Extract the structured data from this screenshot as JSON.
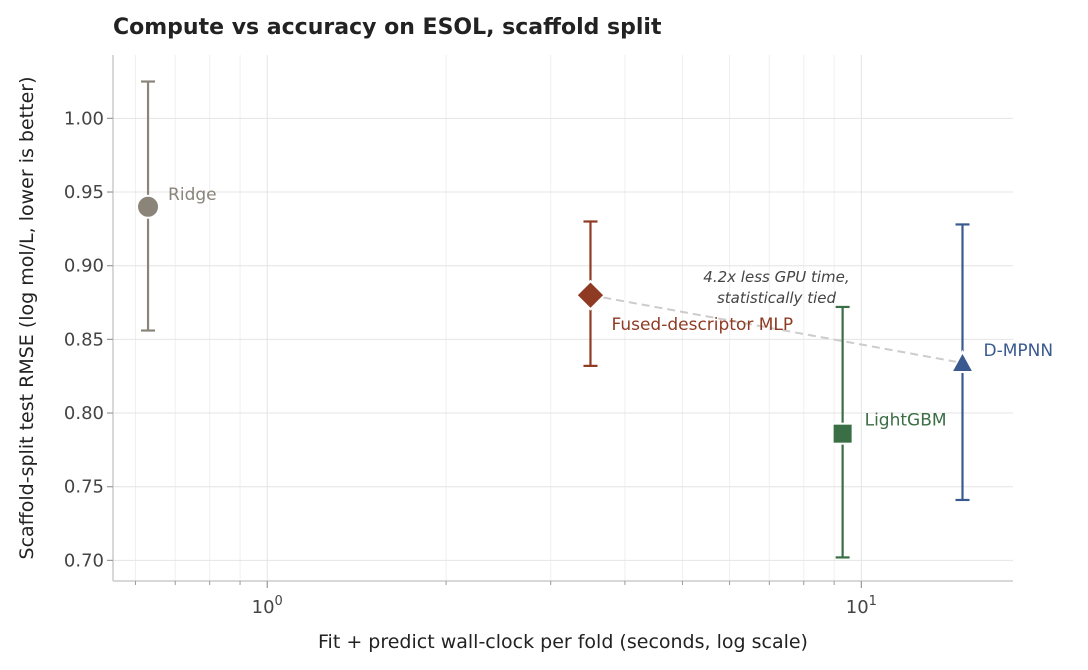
{
  "chart_data": {
    "type": "scatter",
    "title": "Compute vs accuracy on ESOL, scaffold split",
    "xlabel": "Fit + predict wall-clock per fold (seconds, log scale)",
    "ylabel": "Scaffold-split test RMSE  (log mol/L, lower is better)",
    "x_scale": "log",
    "xlim": [
      0.55,
      18
    ],
    "ylim": [
      0.686,
      1.043
    ],
    "grid": true,
    "x_ticks": [
      {
        "value": 1,
        "label": "10^0"
      },
      {
        "value": 10,
        "label": "10^1"
      }
    ],
    "y_ticks": [
      "0.70",
      "0.75",
      "0.80",
      "0.85",
      "0.90",
      "0.95",
      "1.00"
    ],
    "points": [
      {
        "name": "Ridge",
        "x": 0.63,
        "y": 0.94,
        "err_low": 0.856,
        "err_high": 1.025,
        "marker": "circle",
        "color": "#8a8479"
      },
      {
        "name": "Fused-descriptor MLP",
        "x": 3.5,
        "y": 0.88,
        "err_low": 0.832,
        "err_high": 0.93,
        "marker": "diamond",
        "color": "#8f3a22"
      },
      {
        "name": "LightGBM",
        "x": 9.3,
        "y": 0.786,
        "err_low": 0.702,
        "err_high": 0.872,
        "marker": "square",
        "color": "#3a6e44"
      },
      {
        "name": "D-MPNN",
        "x": 14.8,
        "y": 0.834,
        "err_low": 0.741,
        "err_high": 0.928,
        "marker": "triangle",
        "color": "#3a5a8f"
      }
    ],
    "annotation": {
      "lines": [
        "4.2x less GPU time,",
        "statistically tied"
      ],
      "connects": [
        "Fused-descriptor MLP",
        "D-MPNN"
      ]
    }
  }
}
